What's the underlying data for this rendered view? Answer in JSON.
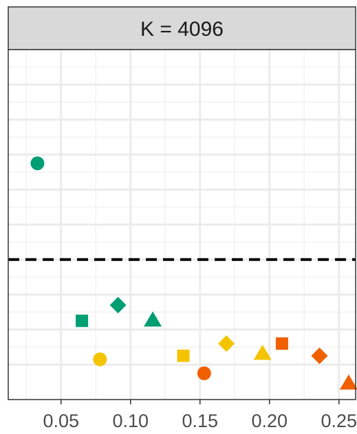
{
  "chart_data": {
    "type": "scatter",
    "facet_label": "K = 4096",
    "title": "",
    "xlabel": "",
    "ylabel": "",
    "xlim": [
      0.012,
      0.262
    ],
    "ylim": [
      0.0,
      10.0
    ],
    "x_ticks": [
      0.05,
      0.1,
      0.15,
      0.2,
      0.25
    ],
    "x_tick_labels": [
      "0.05",
      "0.10",
      "0.15",
      "0.20",
      "0.25"
    ],
    "x_minor_ticks": [
      0.025,
      0.075,
      0.125,
      0.175,
      0.225
    ],
    "y_gridlines": [
      1.0,
      2.0,
      3.0,
      4.0,
      5.0,
      6.0,
      7.0,
      8.0,
      9.0
    ],
    "y_minor_gridlines": [
      1.5,
      2.5,
      3.5,
      4.5,
      5.5,
      6.5,
      7.5,
      8.5,
      9.5
    ],
    "y_ticks_shown": false,
    "grid": true,
    "legend": "none",
    "reference_line": {
      "y": 4.0,
      "style": "dashed",
      "color": "#000000"
    },
    "colors": {
      "green": "#009E73",
      "yellow": "#F5C400",
      "orange": "#F06000"
    },
    "points": [
      {
        "x": 0.033,
        "y": 6.75,
        "shape": "circle",
        "color": "#009E73"
      },
      {
        "x": 0.065,
        "y": 2.25,
        "shape": "square",
        "color": "#009E73"
      },
      {
        "x": 0.091,
        "y": 2.7,
        "shape": "diamond",
        "color": "#009E73"
      },
      {
        "x": 0.116,
        "y": 2.25,
        "shape": "triangle",
        "color": "#009E73"
      },
      {
        "x": 0.078,
        "y": 1.15,
        "shape": "circle",
        "color": "#F5C400"
      },
      {
        "x": 0.138,
        "y": 1.25,
        "shape": "square",
        "color": "#F5C400"
      },
      {
        "x": 0.169,
        "y": 1.6,
        "shape": "diamond",
        "color": "#F5C400"
      },
      {
        "x": 0.195,
        "y": 1.3,
        "shape": "triangle",
        "color": "#F5C400"
      },
      {
        "x": 0.153,
        "y": 0.75,
        "shape": "circle",
        "color": "#F06000"
      },
      {
        "x": 0.209,
        "y": 1.6,
        "shape": "square",
        "color": "#F06000"
      },
      {
        "x": 0.236,
        "y": 1.25,
        "shape": "diamond",
        "color": "#F06000"
      },
      {
        "x": 0.257,
        "y": 0.45,
        "shape": "triangle",
        "color": "#F06000"
      }
    ]
  }
}
